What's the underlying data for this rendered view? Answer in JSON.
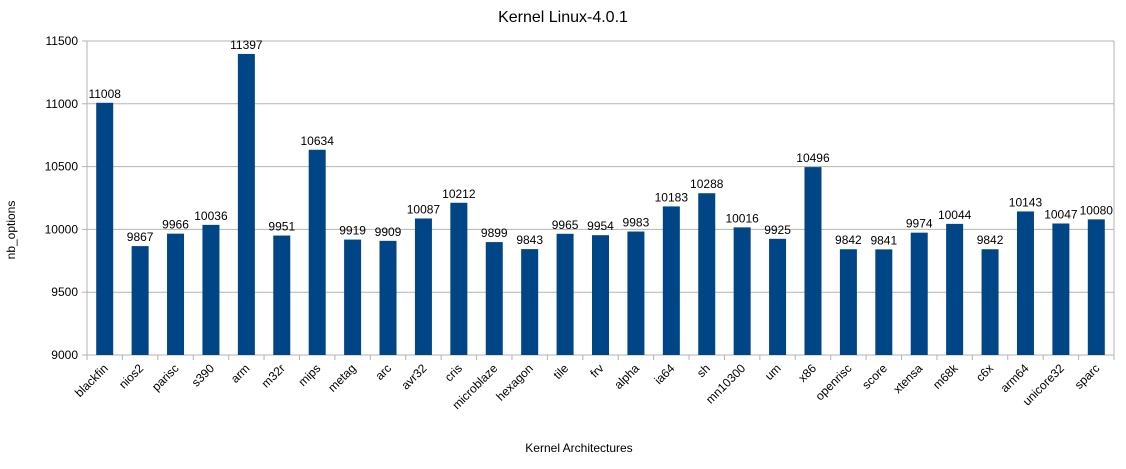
{
  "chart_data": {
    "type": "bar",
    "title": "Kernel Linux-4.0.1",
    "xlabel": "Kernel Architectures",
    "ylabel": "nb_options",
    "ylim": [
      9000,
      11500
    ],
    "yticks": [
      9000,
      9500,
      10000,
      10500,
      11000,
      11500
    ],
    "grid": true,
    "legend": "none",
    "bar_color": "#004586",
    "categories": [
      "blackfin",
      "nios2",
      "parisc",
      "s390",
      "arm",
      "m32r",
      "mips",
      "metag",
      "arc",
      "avr32",
      "cris",
      "microblaze",
      "hexagon",
      "tile",
      "frv",
      "alpha",
      "ia64",
      "sh",
      "mn10300",
      "um",
      "x86",
      "openrisc",
      "score",
      "xtensa",
      "m68k",
      "c6x",
      "arm64",
      "unicore32",
      "sparc"
    ],
    "values": [
      11008,
      9867,
      9966,
      10036,
      11397,
      9951,
      10634,
      9919,
      9909,
      10087,
      10212,
      9899,
      9843,
      9965,
      9954,
      9983,
      10183,
      10288,
      10016,
      9925,
      10496,
      9842,
      9841,
      9974,
      10044,
      9842,
      10143,
      10047,
      10080
    ]
  }
}
